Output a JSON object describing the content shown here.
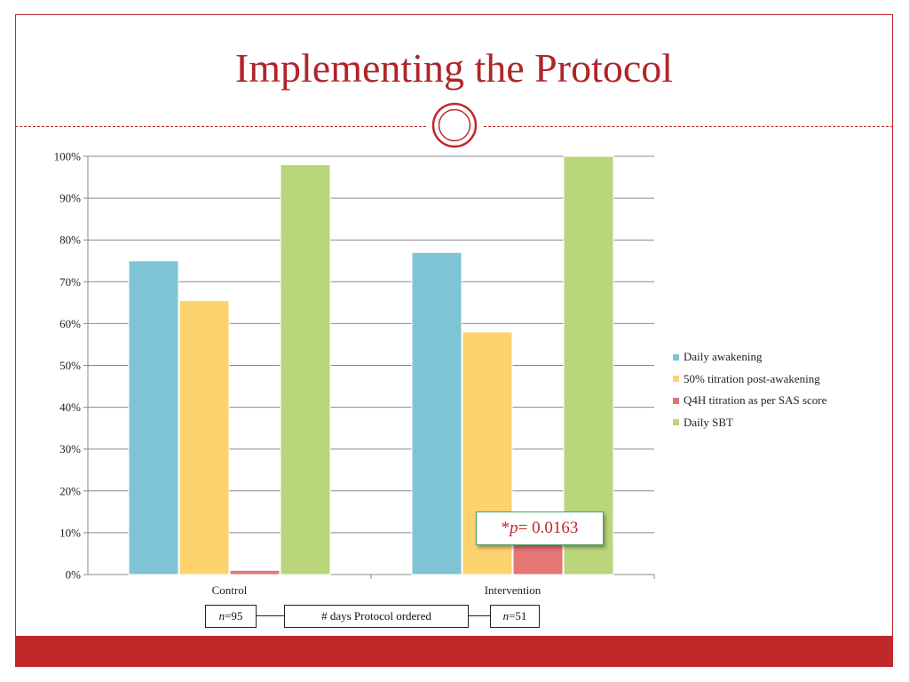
{
  "slide": {
    "title": "Implementing the Protocol",
    "colors": {
      "accent": "#c0282a",
      "title": "#b0252a"
    }
  },
  "chart_data": {
    "type": "bar",
    "categories": [
      "Control",
      "Intervention"
    ],
    "series": [
      {
        "name": "Daily awakening",
        "color": "#7fc4d4",
        "values": [
          75,
          77
        ]
      },
      {
        "name": "50% titration post-awakening",
        "color": "#fdd36f",
        "values": [
          65.5,
          58
        ]
      },
      {
        "name": "Q4H titration as per SAS score",
        "color": "#e47676",
        "values": [
          1,
          9
        ]
      },
      {
        "name": "Daily SBT",
        "color": "#b9d67b",
        "values": [
          98,
          100
        ]
      }
    ],
    "ylim": [
      0,
      100
    ],
    "yticks": [
      "0%",
      "10%",
      "20%",
      "30%",
      "40%",
      "50%",
      "60%",
      "70%",
      "80%",
      "90%",
      "100%"
    ],
    "grid": true,
    "legend": "right",
    "annotation": {
      "prefix": "*",
      "italic": "p",
      "rest": " = 0.0163"
    }
  },
  "footer": {
    "control_n": {
      "italic": "n",
      "rest": "=95"
    },
    "center_label": "# days Protocol ordered",
    "intervention_n": {
      "italic": "n",
      "rest": "=51"
    }
  }
}
